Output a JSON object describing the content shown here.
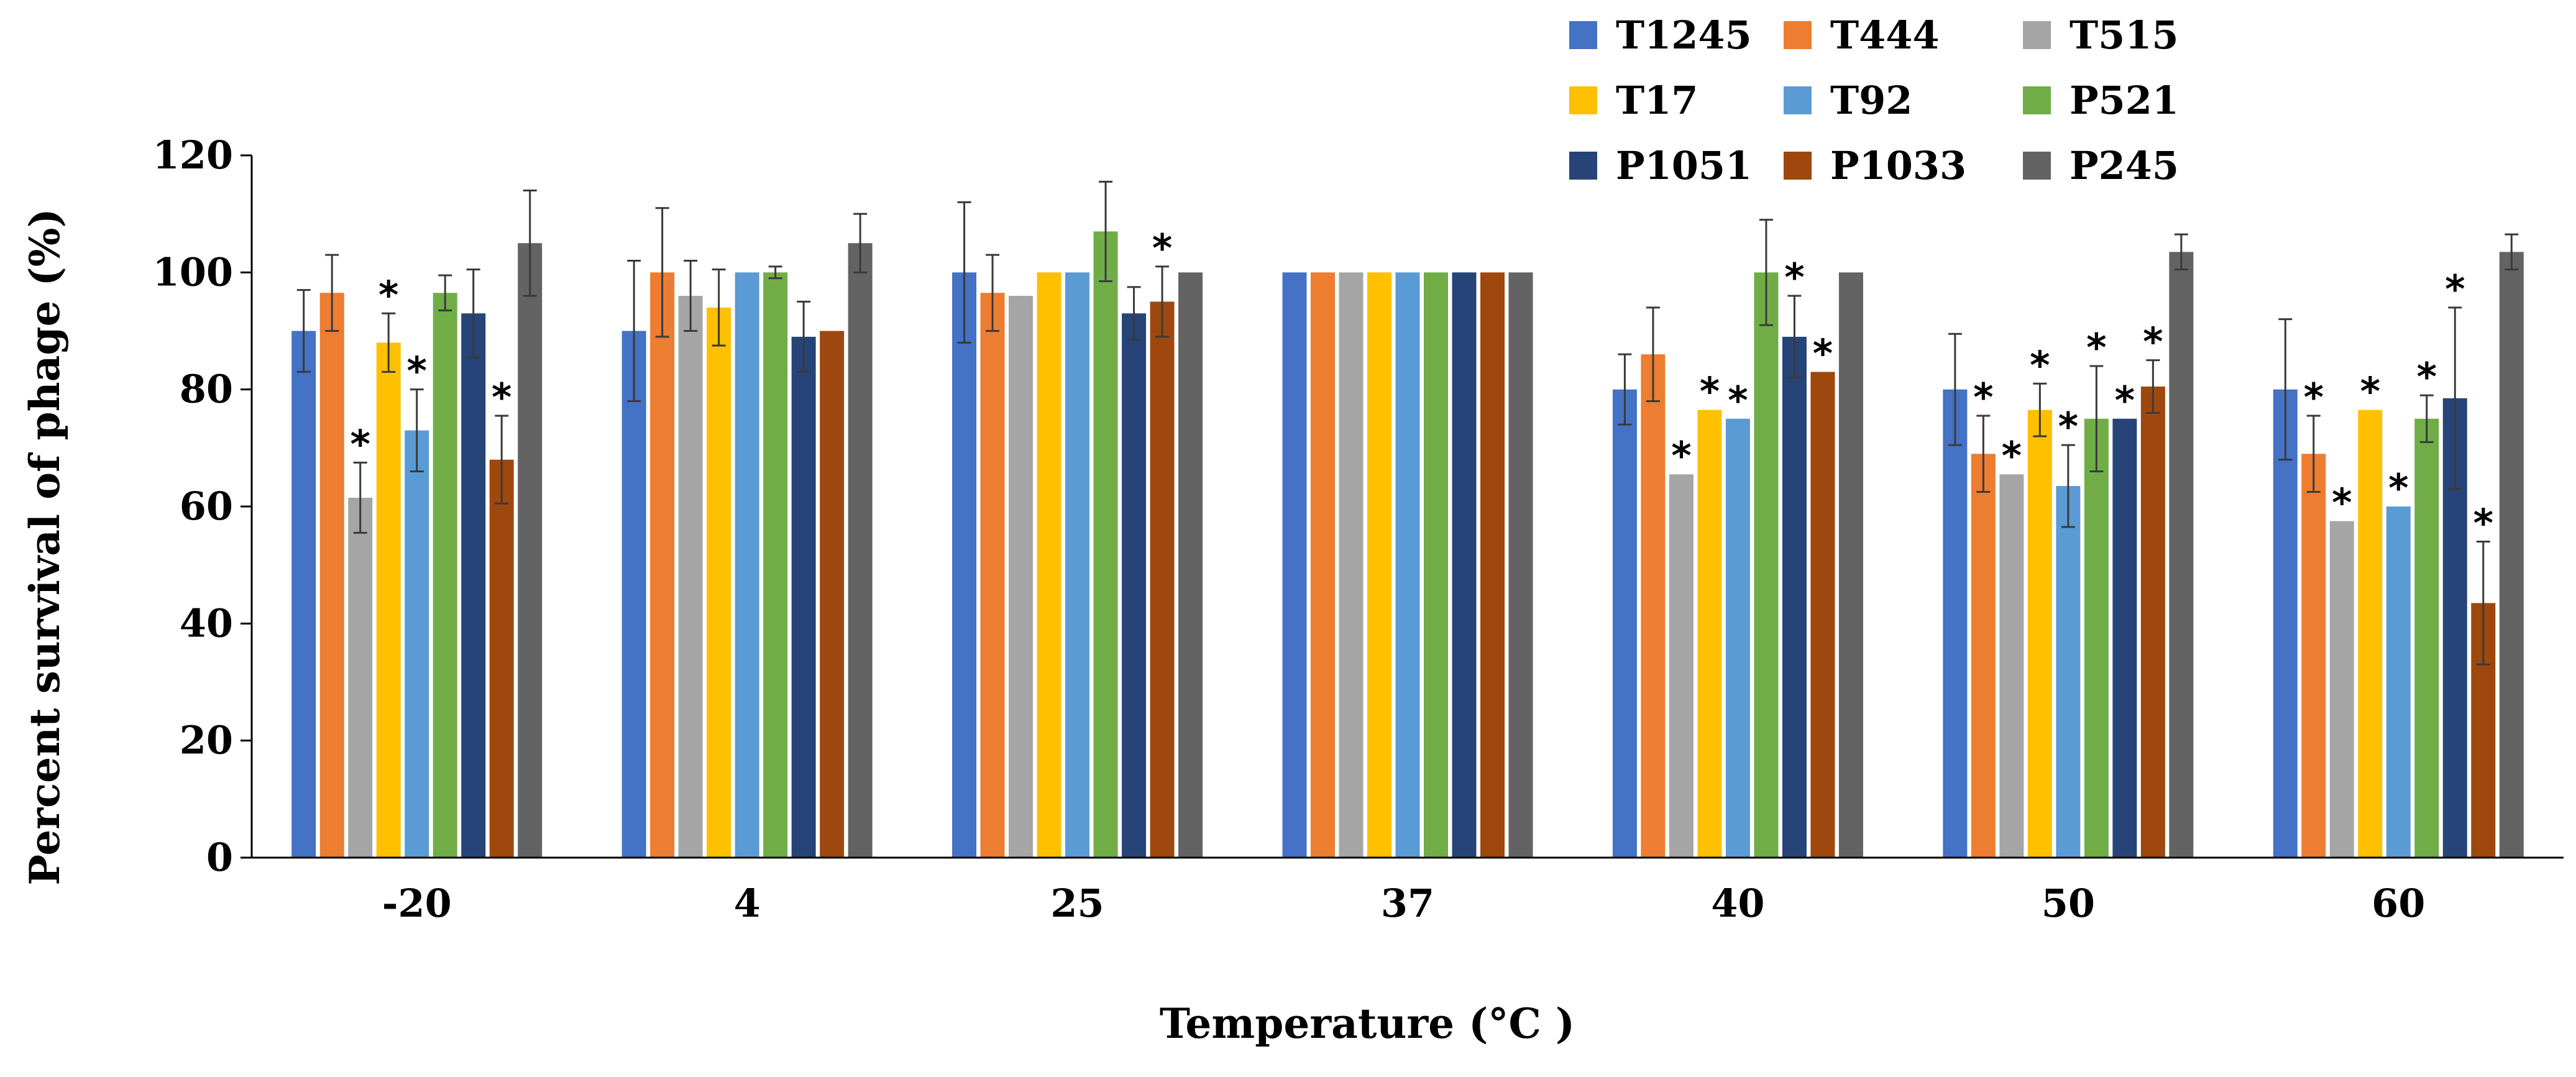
{
  "chart_data": {
    "type": "bar",
    "title": "",
    "xlabel": "Temperature (°C )",
    "ylabel": "Percent survival of phage (%)",
    "ylim": [
      0,
      120
    ],
    "yticks": [
      0,
      20,
      40,
      60,
      80,
      100,
      120
    ],
    "grid": false,
    "legend_position": "top-right",
    "categories": [
      "-20",
      "4",
      "25",
      "37",
      "40",
      "50",
      "60"
    ],
    "significance_marker": "*",
    "series": [
      {
        "name": "T1245",
        "color": "#4472C4",
        "values": [
          90,
          90,
          100,
          100,
          80,
          80,
          80
        ],
        "errors": [
          7,
          12,
          12,
          0,
          6,
          9.5,
          12
        ],
        "significant": [
          false,
          false,
          false,
          false,
          false,
          false,
          false
        ]
      },
      {
        "name": "T444",
        "color": "#ED7D31",
        "values": [
          96.5,
          100,
          96.5,
          100,
          86,
          69,
          69
        ],
        "errors": [
          6.5,
          11,
          6.5,
          0,
          8,
          6.5,
          6.5
        ],
        "significant": [
          false,
          false,
          false,
          false,
          false,
          true,
          true
        ]
      },
      {
        "name": "T515",
        "color": "#A5A5A5",
        "values": [
          61.5,
          96,
          96,
          100,
          65.5,
          65.5,
          57.5
        ],
        "errors": [
          6,
          6,
          0,
          0,
          0,
          0,
          0
        ],
        "significant": [
          true,
          false,
          false,
          false,
          true,
          true,
          true
        ]
      },
      {
        "name": "T17",
        "color": "#FFC000",
        "values": [
          88,
          94,
          100,
          100,
          76.5,
          76.5,
          76.5
        ],
        "errors": [
          5,
          6.5,
          0,
          0,
          0,
          4.5,
          0
        ],
        "significant": [
          true,
          false,
          false,
          false,
          true,
          true,
          true
        ]
      },
      {
        "name": "T92",
        "color": "#5B9BD5",
        "values": [
          73,
          100,
          100,
          100,
          75,
          63.5,
          60
        ],
        "errors": [
          7,
          0,
          0,
          0,
          0,
          7,
          0
        ],
        "significant": [
          true,
          false,
          false,
          false,
          true,
          true,
          true
        ]
      },
      {
        "name": "P521",
        "color": "#70AD47",
        "values": [
          96.5,
          100,
          107,
          100,
          100,
          75,
          75
        ],
        "errors": [
          3,
          1,
          8.5,
          0,
          9,
          9,
          4
        ],
        "significant": [
          false,
          false,
          false,
          false,
          false,
          true,
          true
        ]
      },
      {
        "name": "P1051",
        "color": "#264478",
        "values": [
          93,
          89,
          93,
          100,
          89,
          75,
          78.5
        ],
        "errors": [
          7.5,
          6,
          4.5,
          0,
          7,
          0,
          15.5
        ],
        "significant": [
          false,
          false,
          false,
          false,
          true,
          true,
          true
        ]
      },
      {
        "name": "P1033",
        "color": "#9E480E",
        "values": [
          68,
          90,
          95,
          100,
          83,
          80.5,
          43.5
        ],
        "errors": [
          7.5,
          0,
          6,
          0,
          0,
          4.5,
          10.5
        ],
        "significant": [
          true,
          false,
          true,
          false,
          true,
          true,
          true
        ]
      },
      {
        "name": "P245",
        "color": "#636363",
        "values": [
          105,
          105,
          100,
          100,
          100,
          103.5,
          103.5
        ],
        "errors": [
          9,
          5,
          0,
          0,
          0,
          3,
          3
        ],
        "significant": [
          false,
          false,
          false,
          false,
          false,
          false,
          false
        ]
      }
    ]
  }
}
